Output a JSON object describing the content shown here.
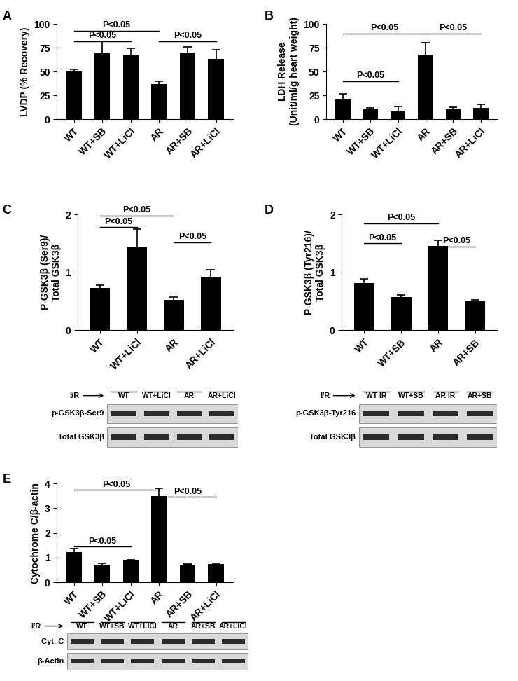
{
  "chart_data": [
    {
      "type": "bar",
      "title": "A",
      "ylabel": "LVDP (% Recovery)",
      "categories": [
        "WT",
        "WT+SB",
        "WT+LiCl",
        "AR",
        "AR+SB",
        "AR+LiCl"
      ],
      "values": [
        50,
        69,
        67,
        37,
        69,
        63
      ],
      "errors": [
        2.5,
        13,
        7,
        2.5,
        6.5,
        10
      ],
      "color": "#000000",
      "ylim": [
        0,
        100
      ],
      "yticks": [
        0,
        25,
        50,
        75,
        100
      ],
      "annotations": [
        {
          "text": "P<0.05",
          "from": 0,
          "to": 3,
          "y": 93
        },
        {
          "text": "P<0.05",
          "from": 0,
          "to": 2,
          "y": 82
        },
        {
          "text": "P<0.05",
          "from": 3,
          "to": 5,
          "y": 82
        }
      ]
    },
    {
      "type": "bar",
      "title": "B",
      "ylabel": "LDH Release\n(Unit/ml/g heart weight)",
      "categories": [
        "WT",
        "WT+SB",
        "WT+LiCl",
        "AR",
        "AR+SB",
        "AR+LiCl"
      ],
      "values": [
        21,
        11,
        8,
        68,
        10,
        12
      ],
      "errors": [
        5.5,
        0.5,
        5.5,
        12,
        2.5,
        3.5
      ],
      "color": "#000000",
      "ylim": [
        0,
        100
      ],
      "yticks": [
        0,
        25,
        50,
        75,
        100
      ],
      "annotations": [
        {
          "text": "P<0.05",
          "from": 0,
          "to": 3,
          "y": 90
        },
        {
          "text": "P<0.05",
          "from": 3,
          "to": 5,
          "y": 90
        },
        {
          "text": "P<0.05",
          "from": 0,
          "to": 2,
          "y": 40
        }
      ]
    },
    {
      "type": "bar",
      "title": "C",
      "ylabel": "P-GSK3β (Ser9)/\nTotal GSK3β",
      "categories": [
        "WT",
        "WT+LiCl",
        "AR",
        "AR+LiCl"
      ],
      "values": [
        0.73,
        1.45,
        0.53,
        0.92
      ],
      "errors": [
        0.05,
        0.3,
        0.04,
        0.12
      ],
      "color": "#000000",
      "ylim": [
        0,
        2
      ],
      "yticks": [
        0,
        1,
        2
      ],
      "annotations": [
        {
          "text": "P<0.05",
          "from": 0,
          "to": 2,
          "y": 1.98
        },
        {
          "text": "P<0.05",
          "from": 0,
          "to": 1,
          "y": 1.78
        },
        {
          "text": "P<0.05",
          "from": 2,
          "to": 3,
          "y": 1.52
        }
      ],
      "blot": {
        "header": "I/R",
        "lanes": [
          "WT",
          "WT+LiCl",
          "AR",
          "AR+LiCl"
        ],
        "rows": [
          "p-GSK3β-Ser9",
          "Total GSK3β"
        ]
      }
    },
    {
      "type": "bar",
      "title": "D",
      "ylabel": "P-GSK3β (Tyr216)/\nTotal GSK3β",
      "categories": [
        "WT",
        "WT+SB",
        "AR",
        "AR+SB"
      ],
      "values": [
        0.82,
        0.57,
        1.46,
        0.5
      ],
      "errors": [
        0.07,
        0.04,
        0.1,
        0.02
      ],
      "color": "#000000",
      "ylim": [
        0,
        2
      ],
      "yticks": [
        0,
        1,
        2
      ],
      "annotations": [
        {
          "text": "P<0.05",
          "from": 0,
          "to": 2,
          "y": 1.85
        },
        {
          "text": "P<0.05",
          "from": 0,
          "to": 1,
          "y": 1.5
        },
        {
          "text": "P<0.05",
          "from": 2,
          "to": 3,
          "y": 1.45
        }
      ],
      "blot": {
        "header": "I/R",
        "lanes": [
          "WT IR",
          "WT+SB",
          "AR IR",
          "AR+SB"
        ],
        "rows": [
          "p-GSK3β-Tyr216",
          "Total GSK3β"
        ]
      }
    },
    {
      "type": "bar",
      "title": "E",
      "ylabel": "Cytochrome C/β-actin",
      "categories": [
        "WT",
        "WT+SB",
        "WT+LiCl",
        "AR",
        "AR+SB",
        "AR+LiCl"
      ],
      "values": [
        1.22,
        0.7,
        0.88,
        3.5,
        0.72,
        0.75
      ],
      "errors": [
        0.15,
        0.07,
        0.02,
        0.3,
        0.02,
        0.03
      ],
      "color": "#000000",
      "ylim": [
        0,
        4
      ],
      "yticks": [
        0,
        1,
        2,
        3,
        4
      ],
      "annotations": [
        {
          "text": "P<0.05",
          "from": 0,
          "to": 3,
          "y": 3.75
        },
        {
          "text": "P<0.05",
          "from": 3,
          "to": 5,
          "y": 3.45
        },
        {
          "text": "P<0.05",
          "from": 0,
          "to": 2,
          "y": 1.45
        }
      ],
      "blot": {
        "header": "I/R",
        "lanes": [
          "WT",
          "WT+SB",
          "WT+LiCl",
          "AR",
          "AR+SB",
          "AR+LiCl"
        ],
        "rows": [
          "Cyt. C",
          "β-Actin"
        ]
      }
    }
  ]
}
